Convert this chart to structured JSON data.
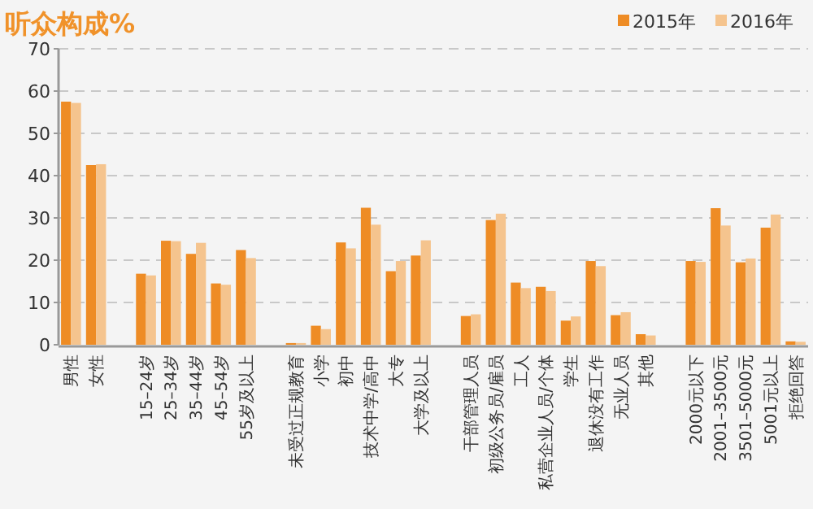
{
  "chart_data": {
    "type": "bar",
    "title": "听众构成%",
    "categories": [
      "男性",
      "女性",
      null,
      "15–24岁",
      "25–34岁",
      "35–44岁",
      "45–54岁",
      "55岁及以上",
      null,
      "未受过正规教育",
      "小学",
      "初中",
      "技术中学/高中",
      "大专",
      "大学及以上",
      null,
      "干部管理人员",
      "初级公务员/雇员",
      "工人",
      "私营企业人员/个体",
      "学生",
      "退休没有工作",
      "无业人员",
      "其他",
      null,
      "2000元以下",
      "2001–3500元",
      "3501–5000元",
      "5001元以上",
      "拒绝回答"
    ],
    "series": [
      {
        "name": "2015年",
        "color": "#ee8c25",
        "values": [
          57.5,
          42.5,
          null,
          16.8,
          24.6,
          21.5,
          14.5,
          22.4,
          null,
          0.4,
          4.5,
          24.2,
          32.4,
          17.4,
          21.1,
          null,
          6.8,
          29.5,
          14.7,
          13.7,
          5.7,
          19.8,
          7.0,
          2.5,
          null,
          19.8,
          32.3,
          19.5,
          27.7,
          0.8
        ]
      },
      {
        "name": "2016年",
        "color": "#f5c48e",
        "values": [
          57.2,
          42.7,
          null,
          16.4,
          24.5,
          24.1,
          14.2,
          20.5,
          null,
          0.4,
          3.7,
          22.8,
          28.4,
          19.8,
          24.7,
          null,
          7.2,
          31.0,
          13.4,
          12.7,
          6.7,
          18.6,
          7.7,
          2.2,
          null,
          19.6,
          28.2,
          20.4,
          30.8,
          0.7
        ]
      }
    ],
    "ylim": [
      0,
      70
    ],
    "yticks": [
      0,
      10,
      20,
      30,
      40,
      50,
      60,
      70
    ],
    "grid": "y",
    "legend": "top right"
  }
}
